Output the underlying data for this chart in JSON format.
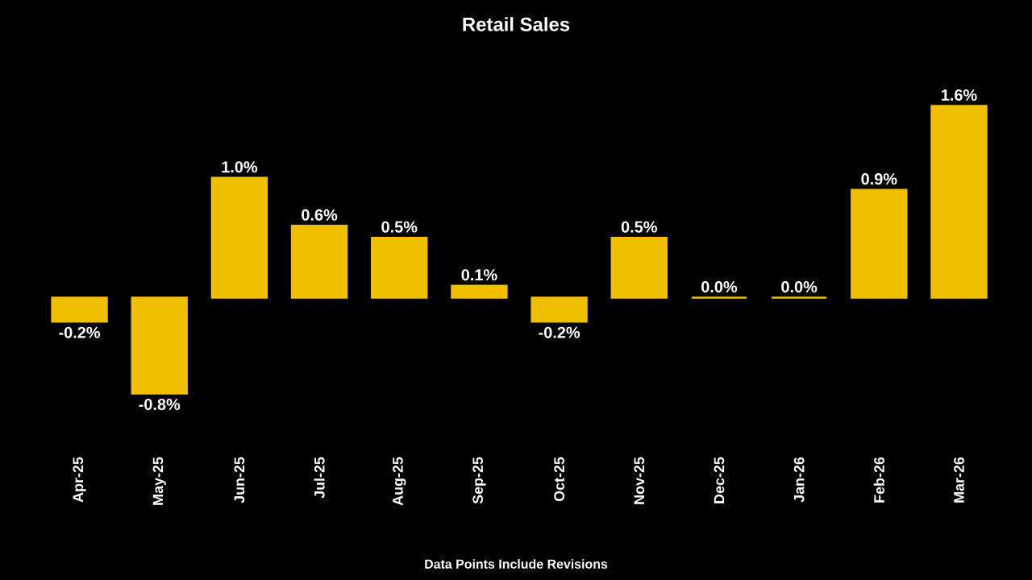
{
  "chart_data": {
    "type": "bar",
    "title": "Retail Sales",
    "categories": [
      "Apr-25",
      "May-25",
      "Jun-25",
      "Jul-25",
      "Aug-25",
      "Sep-25",
      "Oct-25",
      "Nov-25",
      "Dec-25",
      "Jan-26",
      "Feb-26",
      "Mar-26"
    ],
    "values": [
      -0.2,
      -0.8,
      1.0,
      0.6,
      0.5,
      0.1,
      -0.2,
      0.5,
      0.0,
      0.0,
      0.9,
      1.6
    ],
    "value_labels": [
      "-0.2%",
      "-0.8%",
      "1.0%",
      "0.6%",
      "0.5%",
      "0.1%",
      "-0.2%",
      "0.5%",
      "0.0%",
      "0.0%",
      "0.9%",
      "1.6%"
    ],
    "color": "#f0c000",
    "annotations": [
      "Data Points Include Revisions"
    ]
  }
}
